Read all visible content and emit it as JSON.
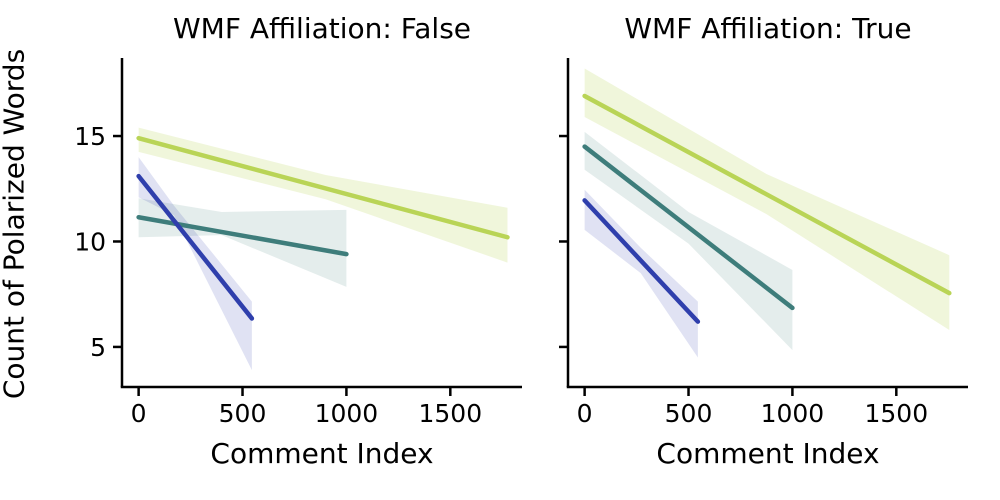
{
  "chart_data": {
    "type": "line",
    "description": "Two-panel regression plot: fitted trend lines with shaded confidence bands",
    "xlabel": "Comment Index",
    "ylabel": "Count of Polarized Words",
    "grid": false,
    "legend": "none",
    "axis_color": "#000000",
    "panels": [
      {
        "title": "WMF Affiliation: False",
        "xlim": [
          -80,
          1845
        ],
        "ylim": [
          3.1,
          18.7
        ],
        "xticks": [
          0,
          500,
          1000,
          1500
        ],
        "yticks": [
          5,
          10,
          15
        ],
        "series": [
          {
            "name": "yellow-green",
            "color": "#b9d456",
            "band_alpha": 0.21,
            "line": {
              "x": [
                0,
                1775
              ],
              "y": [
                14.9,
                10.2
              ]
            },
            "ci": {
              "x": [
                0,
                900,
                1775
              ],
              "top": [
                15.4,
                13.15,
                11.6
              ],
              "bottom": [
                14.25,
                12.0,
                9.0
              ]
            }
          },
          {
            "name": "teal",
            "color": "#3e7d7b",
            "band_alpha": 0.14,
            "line": {
              "x": [
                0,
                1000
              ],
              "y": [
                11.15,
                9.4
              ]
            },
            "ci": {
              "x": [
                0,
                400,
                1000
              ],
              "top": [
                12.05,
                11.4,
                11.5
              ],
              "bottom": [
                10.2,
                10.3,
                7.85
              ]
            }
          },
          {
            "name": "blue",
            "color": "#2f3fac",
            "band_alpha": 0.15,
            "line": {
              "x": [
                0,
                545
              ],
              "y": [
                13.1,
                6.35
              ]
            },
            "ci": {
              "x": [
                0,
                170,
                545
              ],
              "top": [
                14.0,
                11.7,
                7.15
              ],
              "bottom": [
                12.1,
                11.25,
                3.9
              ]
            }
          }
        ]
      },
      {
        "title": "WMF Affiliation: True",
        "xlim": [
          -80,
          1845
        ],
        "ylim": [
          3.1,
          18.7
        ],
        "xticks": [
          0,
          500,
          1000,
          1500
        ],
        "yticks": [
          5,
          10,
          15
        ],
        "series": [
          {
            "name": "yellow-green",
            "color": "#b9d456",
            "band_alpha": 0.21,
            "line": {
              "x": [
                0,
                1755
              ],
              "y": [
                16.9,
                7.55
              ]
            },
            "ci": {
              "x": [
                0,
                875,
                1755
              ],
              "top": [
                18.2,
                13.2,
                9.35
              ],
              "bottom": [
                15.9,
                11.3,
                5.8
              ]
            }
          },
          {
            "name": "teal",
            "color": "#3e7d7b",
            "band_alpha": 0.14,
            "line": {
              "x": [
                0,
                1000
              ],
              "y": [
                14.5,
                6.85
              ]
            },
            "ci": {
              "x": [
                0,
                500,
                1000
              ],
              "top": [
                15.2,
                11.4,
                8.65
              ],
              "bottom": [
                13.4,
                9.9,
                4.85
              ]
            }
          },
          {
            "name": "blue",
            "color": "#2f3fac",
            "band_alpha": 0.15,
            "line": {
              "x": [
                0,
                545
              ],
              "y": [
                11.95,
                6.2
              ]
            },
            "ci": {
              "x": [
                0,
                270,
                545
              ],
              "top": [
                12.45,
                9.7,
                7.15
              ],
              "bottom": [
                10.55,
                8.5,
                4.5
              ]
            }
          }
        ]
      }
    ],
    "layout": {
      "spine_width": 2.5,
      "line_width": 4.5,
      "tick_length": 9
    }
  }
}
